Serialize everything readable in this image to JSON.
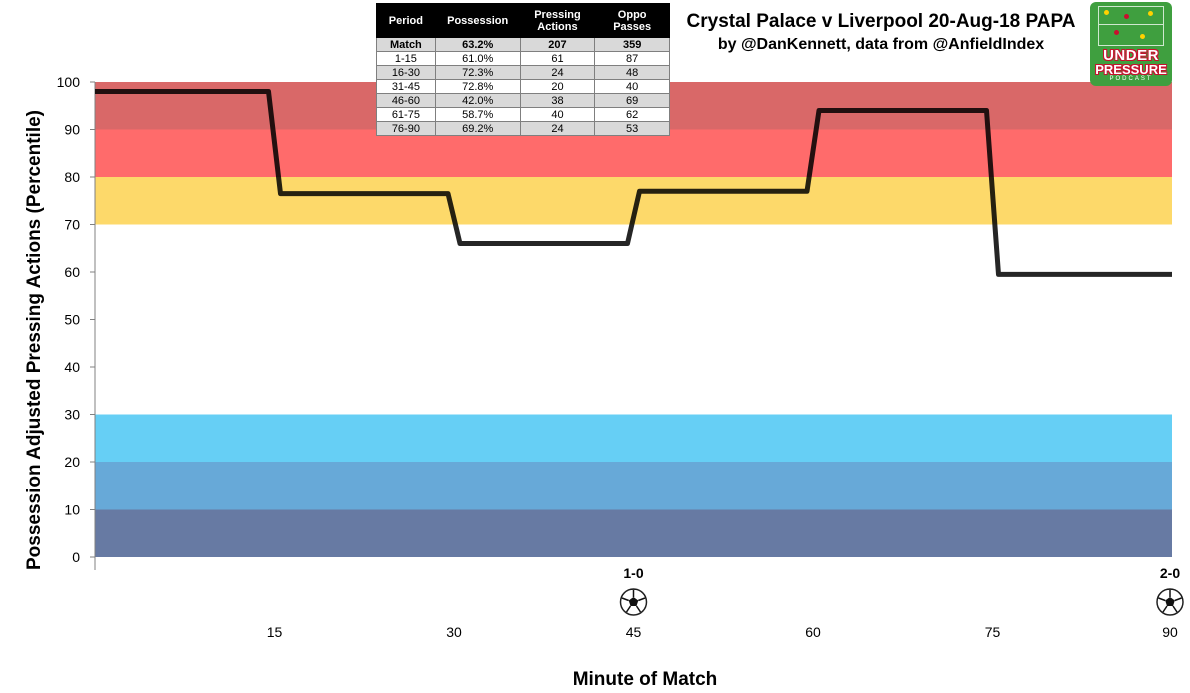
{
  "title": {
    "line1": "Crystal Palace v Liverpool 20-Aug-18 PAPA",
    "line2": "by @DanKennett, data from @AnfieldIndex"
  },
  "stats_table": {
    "headers": [
      "Period",
      "Possession",
      "Pressing Actions",
      "Oppo Passes"
    ],
    "rows": [
      [
        "Match",
        "63.2%",
        "207",
        "359"
      ],
      [
        "1-15",
        "61.0%",
        "61",
        "87"
      ],
      [
        "16-30",
        "72.3%",
        "24",
        "48"
      ],
      [
        "31-45",
        "72.8%",
        "20",
        "40"
      ],
      [
        "46-60",
        "42.0%",
        "38",
        "69"
      ],
      [
        "61-75",
        "58.7%",
        "40",
        "62"
      ],
      [
        "76-90",
        "69.2%",
        "24",
        "53"
      ]
    ]
  },
  "logo": {
    "line1": "UNDER",
    "line2": "PRESSURE",
    "line3": "PODCAST"
  },
  "chart_data": {
    "type": "line",
    "title": "Crystal Palace v Liverpool 20-Aug-18 PAPA",
    "xlabel": "Minute of Match",
    "ylabel": "Possession Adjusted Pressing Actions (Percentile)",
    "xlim": [
      0,
      90
    ],
    "ylim": [
      0,
      100
    ],
    "x_ticks": [
      15,
      30,
      45,
      60,
      75,
      90
    ],
    "y_ticks": [
      0,
      10,
      20,
      30,
      40,
      50,
      60,
      70,
      80,
      90,
      100
    ],
    "grid": false,
    "bands": [
      {
        "from": 0,
        "to": 10,
        "color": "#677aa3"
      },
      {
        "from": 10,
        "to": 20,
        "color": "#67a9d8"
      },
      {
        "from": 20,
        "to": 30,
        "color": "#66cff5"
      },
      {
        "from": 70,
        "to": 80,
        "color": "#fdd96a"
      },
      {
        "from": 80,
        "to": 90,
        "color": "#ff6b6b"
      },
      {
        "from": 90,
        "to": 100,
        "color": "#d96868"
      }
    ],
    "series": [
      {
        "color": "#000000",
        "points": [
          [
            0,
            98
          ],
          [
            14.5,
            98
          ],
          [
            15.5,
            76.5
          ],
          [
            29.5,
            76.5
          ],
          [
            30.5,
            66
          ],
          [
            44.5,
            66
          ],
          [
            45.5,
            77
          ],
          [
            59.5,
            77
          ],
          [
            60.5,
            94
          ],
          [
            74.5,
            94
          ],
          [
            75.5,
            59.5
          ],
          [
            90,
            59.5
          ]
        ]
      }
    ],
    "annotations": [
      {
        "x": 45,
        "text": "1-0",
        "icon": "football-icon"
      },
      {
        "x": 90,
        "text": "2-0",
        "icon": "football-icon"
      }
    ]
  }
}
